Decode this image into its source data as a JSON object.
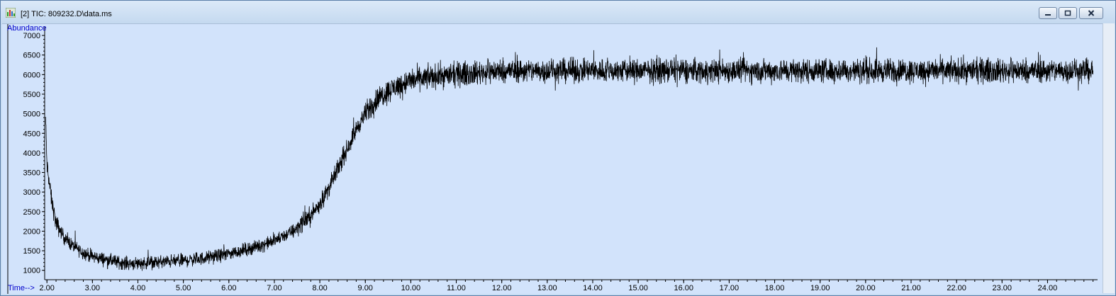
{
  "window": {
    "title": "[2] TIC: 809232.D\\data.ms",
    "buttons": {
      "minimize": "minimize",
      "restore": "restore",
      "close": "close"
    }
  },
  "colors": {
    "plot_background": "#d2e3fb",
    "trace": "#000000",
    "axis_label": "#0000cc"
  },
  "chart_data": {
    "type": "line",
    "ylabel": "Abundance",
    "xlabel": "Time-->",
    "xlim": [
      1.95,
      25.1
    ],
    "ylim": [
      760,
      7200
    ],
    "x_ticks": [
      "2.00",
      "3.00",
      "4.00",
      "5.00",
      "6.00",
      "7.00",
      "8.00",
      "9.00",
      "10.00",
      "11.00",
      "12.00",
      "13.00",
      "14.00",
      "15.00",
      "16.00",
      "17.00",
      "18.00",
      "19.00",
      "20.00",
      "21.00",
      "22.00",
      "23.00",
      "24.00"
    ],
    "y_ticks": [
      "1000",
      "1500",
      "2000",
      "2500",
      "3000",
      "3500",
      "4000",
      "4500",
      "5000",
      "5500",
      "6000",
      "6500",
      "7000"
    ],
    "grid": false,
    "series": [
      {
        "x": [
          1.97,
          2.0,
          2.1,
          2.2,
          2.4,
          2.6,
          2.8,
          3.0,
          3.2,
          3.4,
          3.6,
          3.8,
          4.0,
          4.3,
          4.6,
          5.0,
          5.4,
          5.8,
          6.2,
          6.6,
          7.0,
          7.4,
          7.8,
          8.0,
          8.2,
          8.4,
          8.6,
          8.8,
          9.0,
          9.2,
          9.4,
          9.6,
          9.8,
          10.0,
          10.5,
          11.0,
          11.5,
          12.0,
          13.0,
          14.0,
          15.0,
          16.0,
          17.0,
          18.0,
          19.0,
          20.0,
          21.0,
          22.0,
          23.0,
          24.0,
          25.0
        ],
        "values": [
          4900,
          3700,
          2800,
          2200,
          1800,
          1600,
          1450,
          1350,
          1300,
          1250,
          1200,
          1180,
          1180,
          1200,
          1220,
          1250,
          1300,
          1380,
          1480,
          1600,
          1750,
          2000,
          2400,
          2700,
          3100,
          3600,
          4100,
          4600,
          5000,
          5300,
          5500,
          5650,
          5750,
          5850,
          5950,
          6000,
          6050,
          6100,
          6100,
          6100,
          6100,
          6100,
          6100,
          6100,
          6100,
          6100,
          6100,
          6100,
          6100,
          6100,
          6100
        ],
        "noise_amplitude": 300
      }
    ]
  }
}
